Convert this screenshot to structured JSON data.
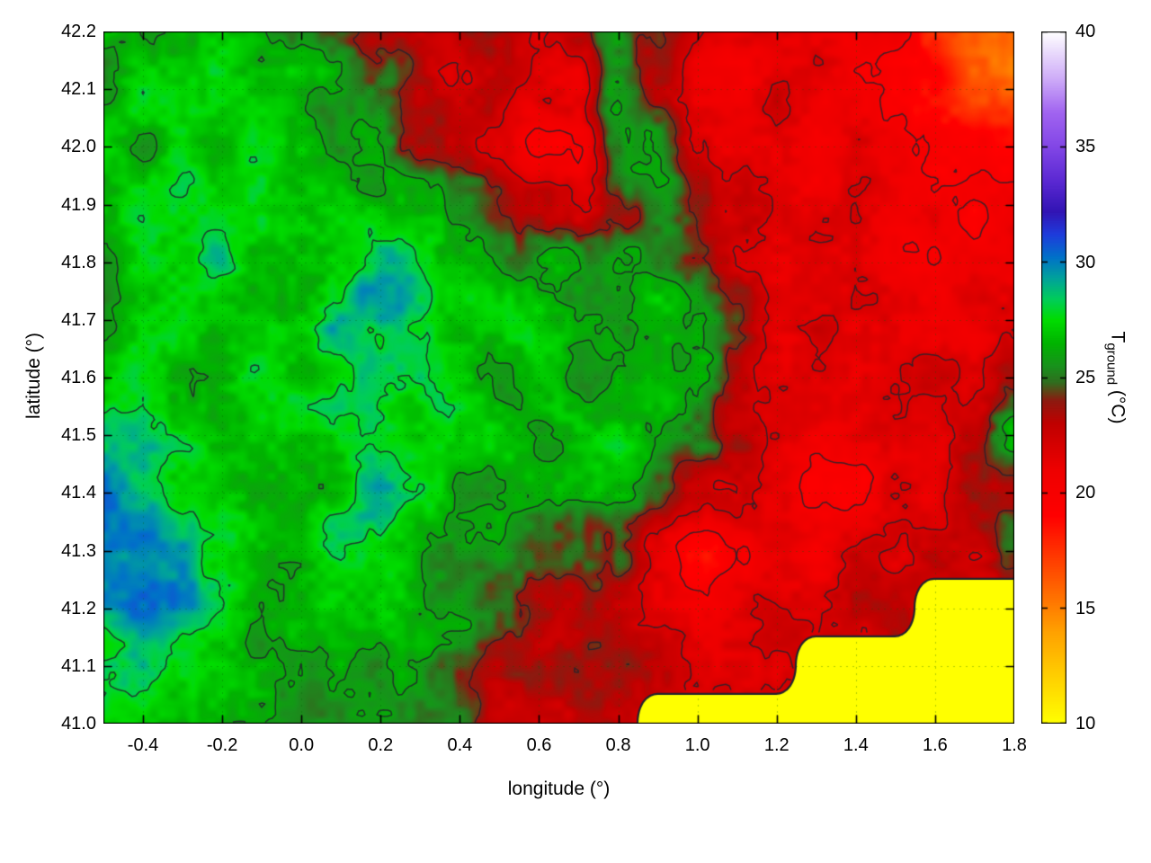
{
  "figure": {
    "xlabel": "longitude (°)",
    "ylabel": "latitude (°)",
    "colorbar": {
      "label_prefix": "T",
      "label_subscript": "ground",
      "label_suffix": " (°C)",
      "min": 10,
      "max": 40,
      "tick_values": [
        10,
        15,
        20,
        25,
        30,
        35,
        40
      ],
      "tick_labels": [
        "10",
        "15",
        "20",
        "25",
        "30",
        "35",
        "40"
      ]
    }
  },
  "chart_data": {
    "type": "heatmap",
    "title": "",
    "xlabel": "longitude (°)",
    "ylabel": "latitude (°)",
    "colorbar_label": "T_ground (°C)",
    "x_range": [
      -0.5,
      1.8
    ],
    "y_range": [
      41.0,
      42.2
    ],
    "value_range": [
      10,
      40
    ],
    "x_tick_values": [
      -0.4,
      -0.2,
      0.0,
      0.2,
      0.4,
      0.6,
      0.8,
      1.0,
      1.2,
      1.4,
      1.6,
      1.8
    ],
    "x_tick_labels": [
      "-0.4",
      "-0.2",
      "0.0",
      "0.2",
      "0.4",
      "0.6",
      "0.8",
      "1.0",
      "1.2",
      "1.4",
      "1.6",
      "1.8"
    ],
    "y_tick_values": [
      41.0,
      41.1,
      41.2,
      41.3,
      41.4,
      41.5,
      41.6,
      41.7,
      41.8,
      41.9,
      42.0,
      42.1,
      42.2
    ],
    "y_tick_labels": [
      "41.0",
      "41.1",
      "41.2",
      "41.3",
      "41.4",
      "41.5",
      "41.6",
      "41.7",
      "41.8",
      "41.9",
      "42.0",
      "42.1",
      "42.2"
    ],
    "lon": [
      -0.5,
      -0.4,
      -0.3,
      -0.2,
      -0.1,
      0.0,
      0.1,
      0.2,
      0.3,
      0.4,
      0.5,
      0.6,
      0.7,
      0.8,
      0.9,
      1.0,
      1.1,
      1.2,
      1.3,
      1.4,
      1.5,
      1.6,
      1.7,
      1.8
    ],
    "lat_top_to_bottom": [
      42.2,
      42.1,
      42.0,
      41.9,
      41.8,
      41.7,
      41.6,
      41.5,
      41.4,
      41.3,
      41.2,
      41.1,
      41.0
    ],
    "values_c": [
      [
        26,
        26,
        26,
        27,
        26,
        26,
        25,
        24,
        23,
        23,
        23,
        22,
        23,
        26,
        24,
        22,
        21,
        21,
        21,
        20,
        20,
        18,
        16,
        15
      ],
      [
        26,
        27,
        27,
        27,
        27,
        26,
        26,
        25,
        23,
        22,
        23,
        22,
        21,
        26,
        23,
        21,
        21,
        22,
        21,
        21,
        20,
        19,
        17,
        16
      ],
      [
        27,
        26,
        27,
        27,
        27,
        27,
        26,
        26,
        24,
        23,
        22,
        20,
        20,
        25,
        26,
        22,
        21,
        21,
        21,
        21,
        21,
        20,
        19,
        18
      ],
      [
        26,
        27,
        28,
        27,
        27,
        27,
        27,
        26,
        26,
        25,
        24,
        23,
        22,
        24,
        25,
        24,
        22,
        22,
        21,
        21,
        21,
        21,
        20,
        20
      ],
      [
        26,
        27,
        27,
        28,
        27,
        27,
        28,
        29,
        28,
        27,
        26,
        26,
        26,
        26,
        26,
        25,
        23,
        22,
        22,
        21,
        21,
        21,
        21,
        21
      ],
      [
        26,
        27,
        27,
        27,
        27,
        27,
        29,
        29,
        28,
        27,
        27,
        27,
        26,
        26,
        27,
        26,
        24,
        22,
        22,
        21,
        22,
        21,
        21,
        22
      ],
      [
        27,
        27,
        26,
        27,
        27,
        27,
        28,
        28,
        28,
        27,
        26,
        27,
        26,
        27,
        27,
        26,
        24,
        22,
        21,
        21,
        22,
        22,
        22,
        23
      ],
      [
        29,
        28,
        27,
        26,
        27,
        27,
        28,
        28,
        27,
        27,
        27,
        26,
        27,
        27,
        26,
        25,
        23,
        22,
        21,
        21,
        22,
        22,
        23,
        26
      ],
      [
        30,
        29,
        28,
        27,
        27,
        27,
        27,
        29,
        28,
        26,
        26,
        26,
        26,
        26,
        25,
        23,
        22,
        21,
        20,
        20,
        21,
        22,
        23,
        24
      ],
      [
        30,
        30,
        29,
        28,
        27,
        27,
        28,
        27,
        26,
        26,
        26,
        25,
        25,
        24,
        21,
        19,
        20,
        21,
        21,
        22,
        22,
        23,
        23,
        25
      ],
      [
        29,
        30,
        29,
        28,
        27,
        27,
        27,
        27,
        26,
        26,
        25,
        24,
        23,
        23,
        22,
        21,
        21,
        22,
        22,
        23,
        23,
        10,
        10,
        10
      ],
      [
        28,
        28,
        28,
        27,
        26,
        26,
        27,
        26,
        26,
        25,
        23,
        23,
        24,
        24,
        23,
        22,
        22,
        22,
        10,
        10,
        10,
        10,
        10,
        10
      ],
      [
        27,
        27,
        27,
        26,
        26,
        26,
        26,
        26,
        25,
        25,
        23,
        23,
        23,
        23,
        10,
        10,
        10,
        10,
        10,
        10,
        10,
        10,
        10,
        10
      ]
    ],
    "sea_value": 10,
    "sea_color": "#ffff00",
    "contour_levels": [
      20,
      22,
      24,
      26,
      28
    ],
    "contour_color": "#23232d",
    "grid_color": "#006400",
    "palette_stops": [
      [
        10,
        "#ffff00"
      ],
      [
        12,
        "#ffd000"
      ],
      [
        14,
        "#ffa000"
      ],
      [
        16,
        "#ff6000"
      ],
      [
        18,
        "#ff2000"
      ],
      [
        19,
        "#ff0000"
      ],
      [
        21,
        "#ee0000"
      ],
      [
        23,
        "#c00000"
      ],
      [
        24,
        "#8c1a10"
      ],
      [
        24.8,
        "#2f6e1e"
      ],
      [
        25.5,
        "#18921c"
      ],
      [
        26.5,
        "#00b400"
      ],
      [
        27.5,
        "#00dc00"
      ],
      [
        28.4,
        "#00cd5a"
      ],
      [
        29.3,
        "#00a29b"
      ],
      [
        30.2,
        "#0072c8"
      ],
      [
        31.2,
        "#1e3cdc"
      ],
      [
        32.2,
        "#3214b4"
      ],
      [
        33.5,
        "#5a28d2"
      ],
      [
        35,
        "#8246e6"
      ],
      [
        36.5,
        "#a164f0"
      ],
      [
        38,
        "#cfaef8"
      ],
      [
        40,
        "#ffffff"
      ]
    ]
  }
}
